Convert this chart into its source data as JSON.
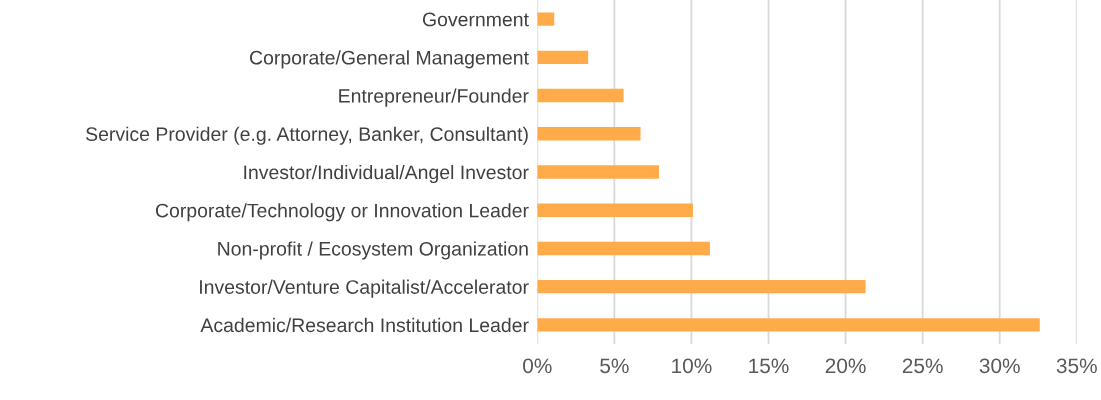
{
  "chart_data": {
    "type": "bar",
    "orientation": "horizontal",
    "categories": [
      "Government",
      "Corporate/General Management",
      "Entrepreneur/Founder",
      "Service Provider (e.g. Attorney, Banker, Consultant)",
      "Investor/Individual/Angel Investor",
      "Corporate/Technology or Innovation Leader",
      "Non-profit / Ecosystem Organization",
      "Investor/Venture Capitalist/Accelerator",
      "Academic/Research Institution Leader"
    ],
    "values": [
      1.1,
      3.3,
      5.6,
      6.7,
      7.9,
      10.1,
      11.2,
      21.3,
      32.6
    ],
    "color": "#ffab4a",
    "xlim": [
      0,
      35
    ],
    "xticks": [
      {
        "value": 0,
        "label": "0%"
      },
      {
        "value": 5,
        "label": "5%"
      },
      {
        "value": 10,
        "label": "10%"
      },
      {
        "value": 15,
        "label": "15%"
      },
      {
        "value": 20,
        "label": "20%"
      },
      {
        "value": 25,
        "label": "25%"
      },
      {
        "value": 30,
        "label": "30%"
      },
      {
        "value": 35,
        "label": "35%"
      }
    ],
    "grid": "x"
  }
}
